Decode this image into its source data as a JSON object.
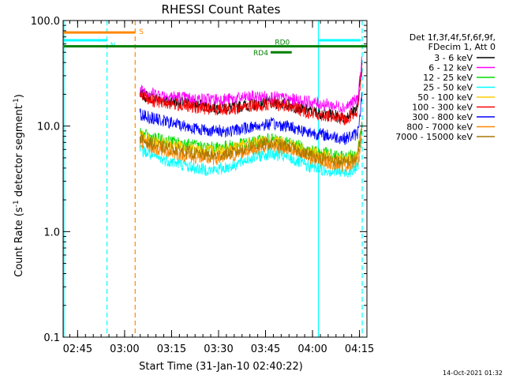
{
  "chart_data": {
    "type": "line",
    "title": "RHESSI Count Rates",
    "xlabel": "Start Time (31-Jan-10 02:40:22)",
    "ylabel_main": "Count Rate (s",
    "ylabel_sup1": "-1",
    "ylabel_mid": " detector segment",
    "ylabel_sup2": "-1",
    "ylabel_end": ")",
    "y_scale": "log",
    "ylim": [
      0.1,
      100
    ],
    "y_ticks": [
      {
        "value": 100,
        "label": "100.0"
      },
      {
        "value": 10,
        "label": "10.0"
      },
      {
        "value": 1,
        "label": "1.0"
      },
      {
        "value": 0.1,
        "label": "0.1"
      }
    ],
    "x_range_minutes": [
      0,
      97
    ],
    "x_ticks": [
      {
        "minutes": 4.63,
        "label": "02:45"
      },
      {
        "minutes": 19.63,
        "label": "03:00"
      },
      {
        "minutes": 34.63,
        "label": "03:15"
      },
      {
        "minutes": 49.63,
        "label": "03:30"
      },
      {
        "minutes": 64.63,
        "label": "03:45"
      },
      {
        "minutes": 79.63,
        "label": "04:00"
      },
      {
        "minutes": 94.63,
        "label": "04:15"
      }
    ],
    "grid": false,
    "legend_position": "right",
    "legend_header": [
      "Det 1f,3f,4f,5f,6f,9f,",
      "FDecim 1, Att 0"
    ],
    "series": [
      {
        "name": "3 - 6 keV",
        "color": "#000000",
        "x": [
          24.5,
          30,
          36,
          42,
          48,
          54,
          60,
          66,
          72,
          78,
          84,
          90,
          94,
          95.5
        ],
        "values": [
          20,
          18,
          17,
          16,
          15,
          15,
          16,
          17,
          16,
          14,
          13,
          12,
          15,
          40
        ]
      },
      {
        "name": "6 - 12 keV",
        "color": "#ff00ff",
        "x": [
          24.5,
          30,
          36,
          42,
          48,
          54,
          60,
          66,
          72,
          78,
          84,
          90,
          94,
          95.5
        ],
        "values": [
          22,
          20,
          19,
          18,
          18,
          18,
          19,
          19,
          18,
          17,
          16,
          15,
          18,
          45
        ]
      },
      {
        "name": "12 - 25 keV",
        "color": "#00dd00",
        "x": [
          24.5,
          30,
          36,
          42,
          48,
          54,
          60,
          66,
          72,
          78,
          84,
          90,
          94,
          95.5
        ],
        "values": [
          8.5,
          7.5,
          7,
          6.5,
          6.2,
          6.5,
          7,
          7.5,
          7,
          6,
          5.5,
          5,
          5.5,
          12
        ]
      },
      {
        "name": "25 - 50 keV",
        "color": "#00ffff",
        "x": [
          24.5,
          30,
          36,
          42,
          48,
          54,
          60,
          66,
          72,
          78,
          84,
          90,
          94,
          95.5
        ],
        "values": [
          6,
          5,
          4.5,
          4,
          3.8,
          4.2,
          5,
          5.5,
          5,
          4.2,
          3.8,
          3.6,
          4,
          8
        ]
      },
      {
        "name": "50 - 100 keV",
        "color": "#ffcc00",
        "x": [
          24.5,
          30,
          36,
          42,
          48,
          54,
          60,
          66,
          72,
          78,
          84,
          90,
          94,
          95.5
        ],
        "values": [
          8,
          7,
          6.5,
          6,
          5.8,
          6.2,
          6.8,
          7.2,
          6.8,
          5.8,
          5.2,
          4.8,
          5.2,
          11
        ]
      },
      {
        "name": "100 - 300 keV",
        "color": "#ff0000",
        "x": [
          24.5,
          30,
          36,
          42,
          48,
          54,
          60,
          66,
          72,
          78,
          84,
          90,
          94,
          95.5
        ],
        "values": [
          19,
          17,
          16,
          15,
          14.5,
          14.5,
          15.5,
          16,
          15.5,
          13.5,
          12.5,
          11.5,
          14,
          38
        ]
      },
      {
        "name": "300 - 800 keV",
        "color": "#0000ff",
        "x": [
          24.5,
          30,
          36,
          42,
          48,
          54,
          60,
          66,
          72,
          78,
          84,
          90,
          94,
          95.5
        ],
        "values": [
          13,
          11.5,
          10.5,
          9.5,
          9,
          9,
          9.8,
          10.5,
          10,
          8.8,
          8.2,
          7.6,
          8.5,
          20
        ]
      },
      {
        "name": "800 - 7000 keV",
        "color": "#ff8800",
        "x": [
          24.5,
          30,
          36,
          42,
          48,
          54,
          60,
          66,
          72,
          78,
          84,
          90,
          94,
          95.5
        ],
        "values": [
          7,
          6,
          5.5,
          5,
          4.8,
          5.2,
          6,
          6.5,
          6,
          5,
          4.5,
          4.2,
          4.6,
          9
        ]
      },
      {
        "name": "7000 - 15000 keV",
        "color": "#aa7700",
        "x": [
          24.5,
          30,
          36,
          42,
          48,
          54,
          60,
          66,
          72,
          78,
          84,
          90,
          94,
          95.5
        ],
        "values": [
          7.5,
          6.5,
          6,
          5.5,
          5.2,
          5.6,
          6.4,
          6.9,
          6.4,
          5.4,
          4.9,
          4.5,
          5,
          10
        ]
      }
    ],
    "annotations": [
      {
        "label": "S",
        "color": "#ff8800",
        "x_start": 0,
        "x_end": 23,
        "y": 77
      },
      {
        "label": "N",
        "color": "#00ffff",
        "x_start": 0,
        "x_end": 14,
        "y": 65
      },
      {
        "label": "",
        "color": "#00ffff",
        "x_start": 81.5,
        "x_end": 95,
        "y": 65
      },
      {
        "label": "RD0",
        "color": "#008000",
        "x_start": 0,
        "x_end": 97,
        "y": 57
      },
      {
        "label": "RD4",
        "color": "#008000",
        "x_start": 66,
        "x_end": 73,
        "y": 50
      }
    ],
    "vertical_markers": [
      {
        "x": 0,
        "color": "#00ffff",
        "style": "solid"
      },
      {
        "x": 14,
        "color": "#00ffff",
        "style": "dashed"
      },
      {
        "x": 23,
        "color": "#ff8800",
        "style": "dashed"
      },
      {
        "x": 81.5,
        "color": "#00ffff",
        "style": "solid"
      },
      {
        "x": 95.5,
        "color": "#00ffff",
        "style": "dashed"
      }
    ],
    "footer_date": "14-Oct-2021 01:32"
  }
}
